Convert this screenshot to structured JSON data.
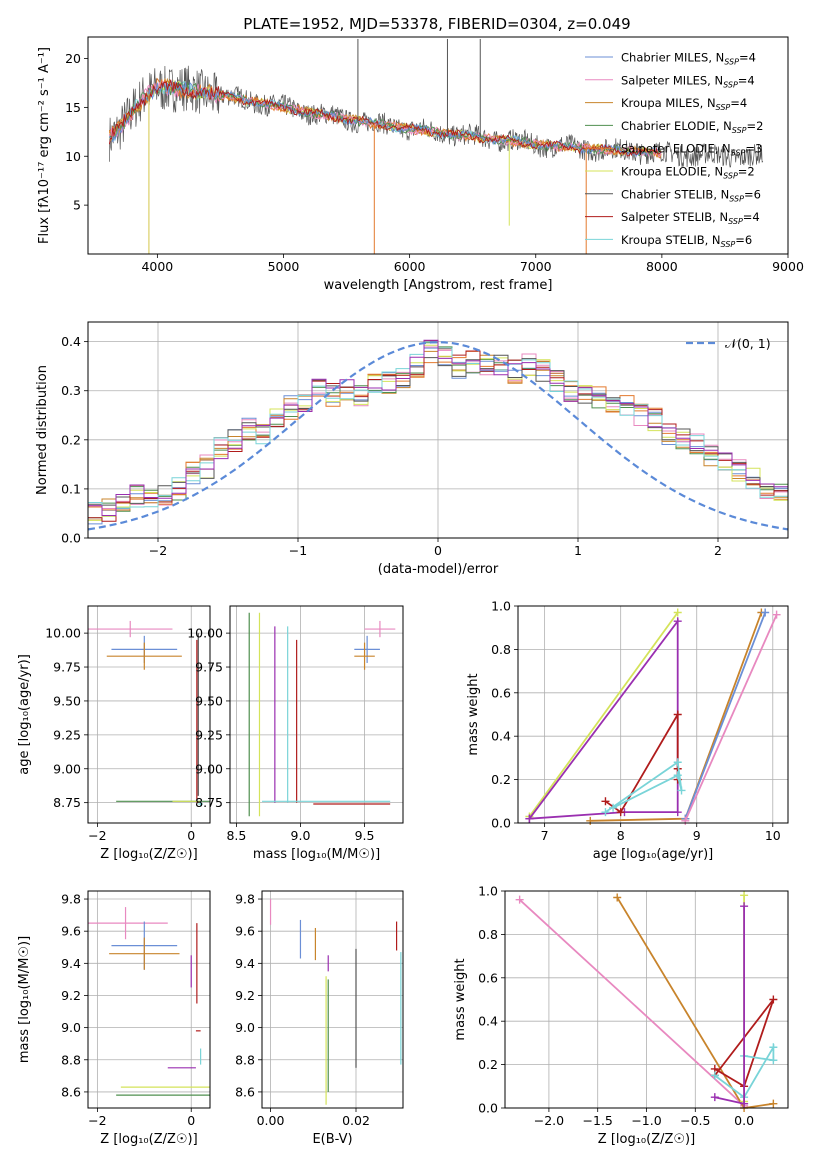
{
  "figure_title": "PLATE=1952, MJD=53378, FIBERID=0304, z=0.049",
  "series_colors": [
    "#6b8fd6",
    "#e889c0",
    "#c8842c",
    "#4f8f4f",
    "#e37a2e",
    "#d4e35a",
    "#555555",
    "#b01c1c",
    "#79d4d8",
    "#9a2fb0"
  ],
  "chart_data": [
    {
      "id": "spectrum",
      "type": "line",
      "xlabel": "wavelength [Angstrom, rest frame]",
      "ylabel": "Flux [fλ10⁻¹⁷ erg cm⁻² s⁻¹ A⁻¹]",
      "xlim": [
        3450,
        9000
      ],
      "ylim": [
        0,
        22.2
      ],
      "xticks": [
        4000,
        5000,
        6000,
        7000,
        8000,
        9000
      ],
      "yticks": [
        5,
        10,
        15,
        20
      ],
      "legend_position": "top-right",
      "legend": [
        {
          "label": "Chabrier MILES, N_SSP=4",
          "color": "#6b8fd6"
        },
        {
          "label": "Salpeter MILES, N_SSP=4",
          "color": "#e889c0"
        },
        {
          "label": "Kroupa MILES, N_SSP=4",
          "color": "#c8842c"
        },
        {
          "label": "Chabrier ELODIE, N_SSP=2",
          "color": "#4f8f4f"
        },
        {
          "label": "Salpeter ELODIE, N_SSP=3",
          "color": "#e37a2e"
        },
        {
          "label": "Kroupa ELODIE, N_SSP=2",
          "color": "#d4e35a"
        },
        {
          "label": "Chabrier STELIB, N_SSP=6",
          "color": "#555555"
        },
        {
          "label": "Salpeter STELIB, N_SSP=4",
          "color": "#b01c1c"
        },
        {
          "label": "Kroupa STELIB, N_SSP=6",
          "color": "#79d4d8"
        }
      ],
      "continuum_x": [
        3620,
        3700,
        3800,
        3900,
        4000,
        4100,
        4200,
        4400,
        4600,
        4800,
        5000,
        5200,
        5500,
        5800,
        6000,
        6200,
        6500,
        6800,
        7000,
        7200,
        7500,
        7800,
        8000,
        8300,
        8600,
        8800
      ],
      "continuum_y": [
        12.0,
        13.0,
        14.5,
        16.0,
        17.2,
        17.0,
        16.8,
        16.5,
        16.0,
        15.5,
        15.0,
        14.5,
        13.8,
        13.2,
        12.8,
        12.5,
        12.0,
        11.6,
        11.2,
        11.0,
        10.7,
        10.5,
        10.3,
        10.1,
        10.0,
        9.9
      ],
      "spikes": [
        {
          "x": 3933,
          "y": 0
        },
        {
          "x": 5720,
          "y": 0
        },
        {
          "x": 7400,
          "y": 0
        },
        {
          "x": 6790,
          "y": 2.9
        },
        {
          "x": 5590,
          "y": 22
        },
        {
          "x": 6300,
          "y": 22
        },
        {
          "x": 6560,
          "y": 22
        }
      ]
    },
    {
      "id": "residuals",
      "type": "line",
      "xlabel": "(data-model)/error",
      "ylabel": "Normed distribution",
      "xlim": [
        -2.5,
        2.5
      ],
      "ylim": [
        0,
        0.44
      ],
      "xticks": [
        -2,
        -1,
        0,
        1,
        2
      ],
      "yticks": [
        0.0,
        0.1,
        0.2,
        0.3,
        0.4
      ],
      "legend_position": "top-right",
      "legend": [
        {
          "label": "𝒩(0, 1)",
          "color": "#5b8ad8"
        }
      ],
      "hist_bin_width": 0.1,
      "hist_profile": [
        0.05,
        0.055,
        0.07,
        0.085,
        0.08,
        0.085,
        0.1,
        0.13,
        0.145,
        0.18,
        0.2,
        0.22,
        0.21,
        0.25,
        0.265,
        0.28,
        0.3,
        0.29,
        0.3,
        0.29,
        0.31,
        0.32,
        0.33,
        0.35,
        0.38,
        0.37,
        0.35,
        0.36,
        0.355,
        0.35,
        0.34,
        0.35,
        0.34,
        0.32,
        0.3,
        0.29,
        0.285,
        0.28,
        0.27,
        0.25,
        0.24,
        0.215,
        0.2,
        0.19,
        0.17,
        0.15,
        0.135,
        0.12,
        0.1,
        0.085,
        0.075,
        0.07,
        0.06,
        0.055,
        0.05
      ]
    },
    {
      "id": "age_vs_Z",
      "type": "scatter",
      "xlabel": "Z [log₁₀(Z/Z☉)]",
      "ylabel": "age  [log₁₀(age/yr)]",
      "xlim": [
        -2.2,
        0.4
      ],
      "ylim": [
        8.6,
        10.2
      ],
      "xticks": [
        -2,
        0
      ],
      "yticks": [
        8.75,
        9.0,
        9.25,
        9.5,
        9.75,
        10.0
      ],
      "points": [
        {
          "x": -1.3,
          "y": 10.03,
          "xerr": 0.9,
          "yerr": 0.06,
          "c": 1
        },
        {
          "x": -1.0,
          "y": 9.88,
          "xerr": 0.7,
          "yerr": 0.1,
          "c": 0
        },
        {
          "x": -1.0,
          "y": 9.83,
          "xerr": 0.8,
          "yerr": 0.1,
          "c": 2
        },
        {
          "x": 0.15,
          "y": 9.4,
          "xerr": 0.0,
          "yerr": 0.6,
          "c": 6
        },
        {
          "x": 0.12,
          "y": 9.35,
          "xerr": 0.0,
          "yerr": 0.6,
          "c": 7
        },
        {
          "x": -0.5,
          "y": 8.76,
          "xerr": 1.1,
          "yerr": 0.0,
          "c": 3
        },
        {
          "x": -0.1,
          "y": 8.76,
          "xerr": 0.3,
          "yerr": 0.0,
          "c": 5
        },
        {
          "x": 0.2,
          "y": 8.74,
          "xerr": 0.05,
          "yerr": 0.02,
          "c": 8
        }
      ]
    },
    {
      "id": "age_vs_mass",
      "type": "scatter",
      "xlabel": "mass [log₁₀(M/M☉)]",
      "ylabel": "",
      "xlim": [
        8.45,
        9.8
      ],
      "ylim": [
        8.6,
        10.2
      ],
      "xticks": [
        8.5,
        9.0,
        9.5
      ],
      "yticks": [
        8.75,
        9.0,
        9.25,
        9.5,
        9.75,
        10.0
      ],
      "points": [
        {
          "x": 9.62,
          "y": 10.03,
          "xerr": 0.12,
          "yerr": 0.06,
          "c": 1
        },
        {
          "x": 9.52,
          "y": 9.88,
          "xerr": 0.1,
          "yerr": 0.1,
          "c": 0
        },
        {
          "x": 9.5,
          "y": 9.83,
          "xerr": 0.08,
          "yerr": 0.1,
          "c": 2
        },
        {
          "x": 8.6,
          "y": 9.4,
          "xerr": 0.0,
          "yerr": 0.75,
          "c": 3
        },
        {
          "x": 8.68,
          "y": 9.4,
          "xerr": 0.0,
          "yerr": 0.75,
          "c": 5
        },
        {
          "x": 8.8,
          "y": 9.4,
          "xerr": 0.0,
          "yerr": 0.65,
          "c": 9
        },
        {
          "x": 8.9,
          "y": 9.4,
          "xerr": 0.0,
          "yerr": 0.65,
          "c": 8
        },
        {
          "x": 8.97,
          "y": 9.35,
          "xerr": 0.0,
          "yerr": 0.6,
          "c": 7
        },
        {
          "x": 9.2,
          "y": 8.76,
          "xerr": 0.5,
          "yerr": 0.0,
          "c": 8
        },
        {
          "x": 9.4,
          "y": 8.74,
          "xerr": 0.3,
          "yerr": 0.0,
          "c": 7
        }
      ]
    },
    {
      "id": "weight_vs_age",
      "type": "line",
      "xlabel": "age  [log₁₀(age/yr)]",
      "ylabel": "mass weight",
      "xlim": [
        6.65,
        10.2
      ],
      "ylim": [
        0,
        1
      ],
      "xticks": [
        7,
        8,
        9,
        10
      ],
      "yticks": [
        0.0,
        0.2,
        0.4,
        0.6,
        0.8,
        1.0
      ],
      "lines": [
        {
          "c": 5,
          "x": [
            6.8,
            8.75
          ],
          "y": [
            0.03,
            0.97
          ]
        },
        {
          "c": 9,
          "x": [
            6.8,
            8.75,
            8.75,
            8.05,
            6.8
          ],
          "y": [
            0.02,
            0.93,
            0.05,
            0.05,
            0.02
          ]
        },
        {
          "c": 7,
          "x": [
            7.8,
            8.0,
            8.75,
            8.75,
            8.75
          ],
          "y": [
            0.1,
            0.05,
            0.5,
            0.2,
            0.25
          ]
        },
        {
          "c": 8,
          "x": [
            7.8,
            8.75,
            8.8,
            8.75,
            7.9
          ],
          "y": [
            0.05,
            0.28,
            0.15,
            0.22,
            0.07
          ]
        },
        {
          "c": 2,
          "x": [
            7.6,
            8.85,
            9.85
          ],
          "y": [
            0.01,
            0.02,
            0.97
          ]
        },
        {
          "c": 0,
          "x": [
            8.85,
            9.9
          ],
          "y": [
            0.02,
            0.97
          ]
        },
        {
          "c": 1,
          "x": [
            8.85,
            10.05
          ],
          "y": [
            0.01,
            0.96
          ]
        }
      ]
    },
    {
      "id": "mass_vs_Z",
      "type": "scatter",
      "xlabel": "Z [log₁₀(Z/Z☉)]",
      "ylabel": "mass [log₁₀(M/M☉)]",
      "xlim": [
        -2.2,
        0.4
      ],
      "ylim": [
        8.5,
        9.85
      ],
      "xticks": [
        -2,
        0
      ],
      "yticks": [
        8.6,
        8.8,
        9.0,
        9.2,
        9.4,
        9.6,
        9.8
      ],
      "points": [
        {
          "x": -1.4,
          "y": 9.65,
          "xerr": 0.9,
          "yerr": 0.1,
          "c": 1
        },
        {
          "x": -1.0,
          "y": 9.51,
          "xerr": 0.7,
          "yerr": 0.15,
          "c": 0
        },
        {
          "x": -1.0,
          "y": 9.46,
          "xerr": 0.75,
          "yerr": 0.1,
          "c": 2
        },
        {
          "x": 0.12,
          "y": 9.4,
          "xerr": 0.0,
          "yerr": 0.25,
          "c": 7
        },
        {
          "x": 0.0,
          "y": 9.35,
          "xerr": 0.0,
          "yerr": 0.1,
          "c": 9
        },
        {
          "x": 0.15,
          "y": 8.98,
          "xerr": 0.05,
          "yerr": 0.0,
          "c": 7
        },
        {
          "x": 0.2,
          "y": 8.82,
          "xerr": 0.0,
          "yerr": 0.05,
          "c": 8
        },
        {
          "x": -0.2,
          "y": 8.75,
          "xerr": 0.3,
          "yerr": 0.0,
          "c": 9
        },
        {
          "x": -0.5,
          "y": 8.63,
          "xerr": 1.0,
          "yerr": 0.0,
          "c": 5
        },
        {
          "x": -0.6,
          "y": 8.58,
          "xerr": 1.0,
          "yerr": 0.0,
          "c": 3
        }
      ]
    },
    {
      "id": "mass_vs_ebv",
      "type": "scatter",
      "xlabel": "E(B-V)",
      "ylabel": "",
      "xlim": [
        -0.002,
        0.031
      ],
      "ylim": [
        8.5,
        9.85
      ],
      "xticks": [
        0.0,
        0.02
      ],
      "yticks": [
        8.6,
        8.8,
        9.0,
        9.2,
        9.4,
        9.6,
        9.8
      ],
      "points": [
        {
          "x": 0.0,
          "y": 9.72,
          "xerr": 0.0,
          "yerr": 0.08,
          "c": 1
        },
        {
          "x": 0.007,
          "y": 9.55,
          "xerr": 0.0,
          "yerr": 0.12,
          "c": 0
        },
        {
          "x": 0.0105,
          "y": 9.52,
          "xerr": 0.0,
          "yerr": 0.1,
          "c": 2
        },
        {
          "x": 0.0135,
          "y": 9.4,
          "xerr": 0.0,
          "yerr": 0.05,
          "c": 9
        },
        {
          "x": 0.013,
          "y": 8.92,
          "xerr": 0.0,
          "yerr": 0.4,
          "c": 5
        },
        {
          "x": 0.0135,
          "y": 8.95,
          "xerr": 0.0,
          "yerr": 0.35,
          "c": 3
        },
        {
          "x": 0.02,
          "y": 9.12,
          "xerr": 0.0,
          "yerr": 0.37,
          "c": 6
        },
        {
          "x": 0.0295,
          "y": 9.57,
          "xerr": 0.0,
          "yerr": 0.09,
          "c": 7
        },
        {
          "x": 0.0305,
          "y": 9.12,
          "xerr": 0.0,
          "yerr": 0.35,
          "c": 8
        }
      ]
    },
    {
      "id": "weight_vs_Z",
      "type": "line",
      "xlabel": "Z [log₁₀(Z/Z☉)]",
      "ylabel": "mass weight",
      "xlim": [
        -2.45,
        0.45
      ],
      "ylim": [
        0,
        1
      ],
      "xticks": [
        -2.0,
        -1.5,
        -1.0,
        -0.5,
        0.0
      ],
      "yticks": [
        0.0,
        0.2,
        0.4,
        0.6,
        0.8,
        1.0
      ],
      "lines": [
        {
          "c": 1,
          "x": [
            -2.3,
            0.0,
            0.0
          ],
          "y": [
            0.96,
            0.01,
            0.02
          ]
        },
        {
          "c": 2,
          "x": [
            -1.3,
            0.0,
            0.3
          ],
          "y": [
            0.97,
            0.0,
            0.02
          ]
        },
        {
          "c": 5,
          "x": [
            0.0,
            0.0
          ],
          "y": [
            0.03,
            0.98
          ]
        },
        {
          "c": 7,
          "x": [
            -0.3,
            0.0,
            0.3,
            -0.3
          ],
          "y": [
            0.18,
            0.1,
            0.5,
            0.15
          ]
        },
        {
          "c": 8,
          "x": [
            -0.3,
            0.0,
            0.3,
            0.3,
            0.0
          ],
          "y": [
            0.15,
            0.05,
            0.28,
            0.22,
            0.24
          ]
        },
        {
          "c": 9,
          "x": [
            -0.3,
            0.0,
            0.0
          ],
          "y": [
            0.05,
            0.02,
            0.93
          ]
        }
      ]
    }
  ]
}
